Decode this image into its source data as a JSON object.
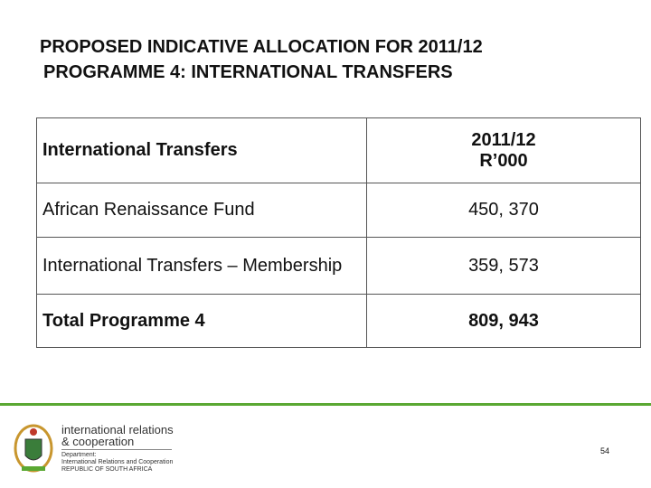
{
  "title": {
    "line1": "PROPOSED INDICATIVE ALLOCATION FOR 2011/12",
    "line2": "PROGRAMME 4: INTERNATIONAL TRANSFERS"
  },
  "table": {
    "header": [
      "International Transfers",
      "2011/12",
      "R’000"
    ],
    "rows": [
      [
        "African Renaissance Fund",
        "450, 370"
      ],
      [
        "International Transfers – Membership",
        "359, 573"
      ],
      [
        "Total Programme 4",
        "809, 943"
      ]
    ]
  },
  "footer": {
    "logo_line1": "international relations",
    "logo_line2": "& cooperation",
    "dept_line1": "Department:",
    "dept_line2": "International Relations and Cooperation",
    "dept_line3": "REPUBLIC OF SOUTH AFRICA",
    "page_number": "54"
  }
}
